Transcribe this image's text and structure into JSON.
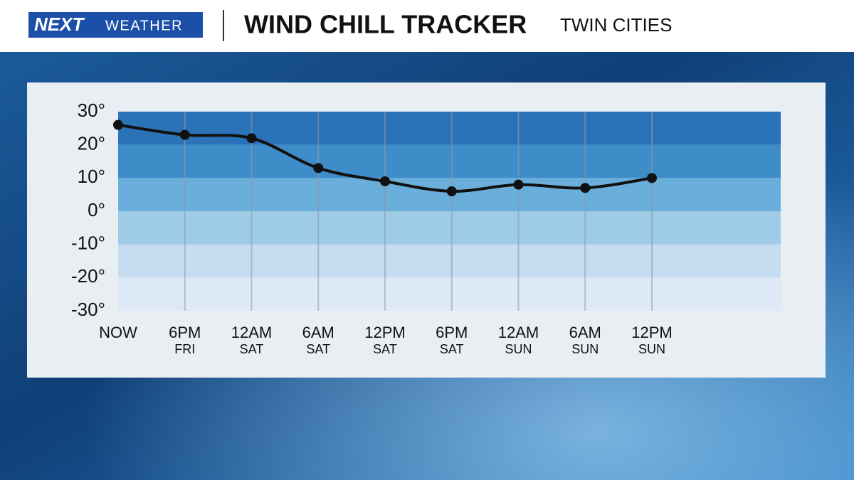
{
  "header": {
    "logo_main": "NEXT",
    "logo_sub": "WEATHER",
    "title": "WIND CHILL TRACKER",
    "location": "TWIN CITIES"
  },
  "chart_data": {
    "type": "line",
    "categories": [
      "NOW",
      "6PM",
      "12AM",
      "6AM",
      "12PM",
      "6PM",
      "12AM",
      "6AM",
      "12PM"
    ],
    "sublabels": [
      null,
      "FRI",
      "SAT",
      "SAT",
      "SAT",
      "SAT",
      "SUN",
      "SUN",
      "SUN"
    ],
    "values": [
      26,
      23,
      22,
      13,
      9,
      6,
      8,
      7,
      10
    ],
    "color": "#111111",
    "ylim": [
      -30,
      30
    ],
    "yticks": [
      {
        "value": -30,
        "label": "-30°"
      },
      {
        "value": -20,
        "label": "-20°"
      },
      {
        "value": -10,
        "label": "-10°"
      },
      {
        "value": 0,
        "label": "0°"
      },
      {
        "value": 10,
        "label": "10°"
      },
      {
        "value": 20,
        "label": "20°"
      },
      {
        "value": 30,
        "label": "30°"
      }
    ],
    "band_colors": [
      "#dde9f6",
      "#c6dcf0",
      "#9ecbe5",
      "#6aaedb",
      "#3f8dc8",
      "#2a73b8"
    ],
    "grid": true
  }
}
